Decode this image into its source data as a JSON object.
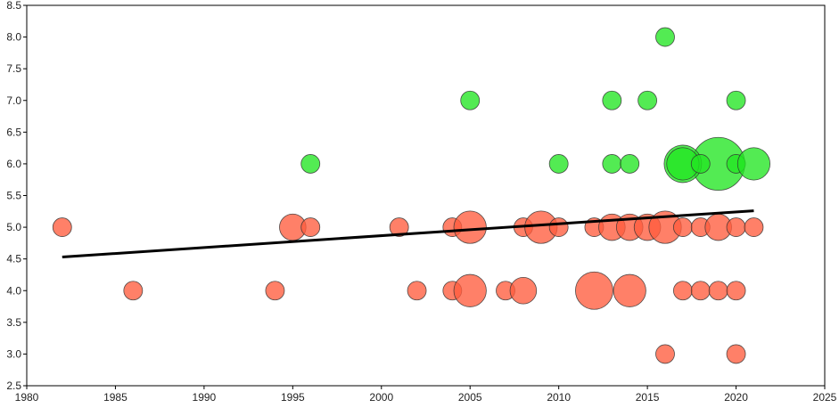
{
  "chart_data": {
    "type": "scatter",
    "title": "",
    "xlabel": "",
    "ylabel": "",
    "xlim": [
      1980,
      2025
    ],
    "ylim": [
      2.5,
      8.5
    ],
    "x_ticks": [
      "1980",
      "1985",
      "1990",
      "1995",
      "2000",
      "2005",
      "2010",
      "2015",
      "2020",
      "2025"
    ],
    "y_ticks": [
      "2.5",
      "3.0",
      "3.5",
      "4.0",
      "4.5",
      "5.0",
      "5.5",
      "6.0",
      "6.5",
      "7.0",
      "7.5",
      "8.0",
      "8.5"
    ],
    "grid": true,
    "colors": {
      "red_series": "#ff5c3d",
      "green_series": "#22e622",
      "trend_line": "#000000"
    },
    "series": [
      {
        "color_key": "red_series",
        "points": [
          {
            "x": 1982,
            "y": 5.0,
            "size": 1
          },
          {
            "x": 1986,
            "y": 4.0,
            "size": 1
          },
          {
            "x": 1994,
            "y": 4.0,
            "size": 1
          },
          {
            "x": 1995,
            "y": 5.0,
            "size": 2
          },
          {
            "x": 1996,
            "y": 5.0,
            "size": 1
          },
          {
            "x": 2001,
            "y": 5.0,
            "size": 1
          },
          {
            "x": 2002,
            "y": 4.0,
            "size": 1
          },
          {
            "x": 2004,
            "y": 4.0,
            "size": 1
          },
          {
            "x": 2004,
            "y": 5.0,
            "size": 1
          },
          {
            "x": 2005,
            "y": 5.0,
            "size": 3
          },
          {
            "x": 2005,
            "y": 4.0,
            "size": 3
          },
          {
            "x": 2007,
            "y": 4.0,
            "size": 1
          },
          {
            "x": 2008,
            "y": 4.0,
            "size": 2
          },
          {
            "x": 2008,
            "y": 5.0,
            "size": 1
          },
          {
            "x": 2009,
            "y": 5.0,
            "size": 3
          },
          {
            "x": 2010,
            "y": 5.0,
            "size": 1
          },
          {
            "x": 2012,
            "y": 5.0,
            "size": 1
          },
          {
            "x": 2012,
            "y": 4.0,
            "size": 4
          },
          {
            "x": 2013,
            "y": 5.0,
            "size": 2
          },
          {
            "x": 2014,
            "y": 5.0,
            "size": 2
          },
          {
            "x": 2014,
            "y": 4.0,
            "size": 3
          },
          {
            "x": 2015,
            "y": 5.0,
            "size": 2
          },
          {
            "x": 2016,
            "y": 5.0,
            "size": 3
          },
          {
            "x": 2016,
            "y": 3.0,
            "size": 1
          },
          {
            "x": 2017,
            "y": 5.0,
            "size": 1
          },
          {
            "x": 2017,
            "y": 4.0,
            "size": 1
          },
          {
            "x": 2018,
            "y": 4.0,
            "size": 1
          },
          {
            "x": 2018,
            "y": 5.0,
            "size": 1
          },
          {
            "x": 2019,
            "y": 5.0,
            "size": 2
          },
          {
            "x": 2019,
            "y": 4.0,
            "size": 1
          },
          {
            "x": 2020,
            "y": 4.0,
            "size": 1
          },
          {
            "x": 2020,
            "y": 5.0,
            "size": 1
          },
          {
            "x": 2020,
            "y": 3.0,
            "size": 1
          },
          {
            "x": 2021,
            "y": 5.0,
            "size": 1
          }
        ]
      },
      {
        "color_key": "green_series",
        "points": [
          {
            "x": 2019,
            "y": 6.0,
            "size": 8
          },
          {
            "x": 1996,
            "y": 6.0,
            "size": 1
          },
          {
            "x": 2005,
            "y": 7.0,
            "size": 1
          },
          {
            "x": 2010,
            "y": 6.0,
            "size": 1
          },
          {
            "x": 2013,
            "y": 7.0,
            "size": 1
          },
          {
            "x": 2013,
            "y": 6.0,
            "size": 1
          },
          {
            "x": 2014,
            "y": 6.0,
            "size": 1
          },
          {
            "x": 2015,
            "y": 7.0,
            "size": 1
          },
          {
            "x": 2016,
            "y": 8.0,
            "size": 1
          },
          {
            "x": 2017,
            "y": 6.0,
            "size": 4
          },
          {
            "x": 2017,
            "y": 6.0,
            "size": 3
          },
          {
            "x": 2018,
            "y": 6.0,
            "size": 1
          },
          {
            "x": 2020,
            "y": 7.0,
            "size": 1
          },
          {
            "x": 2020,
            "y": 6.0,
            "size": 1
          },
          {
            "x": 2021,
            "y": 6.0,
            "size": 3
          }
        ]
      }
    ],
    "trend_line": {
      "x": [
        1982,
        2021
      ],
      "y": [
        4.53,
        5.26
      ]
    }
  }
}
